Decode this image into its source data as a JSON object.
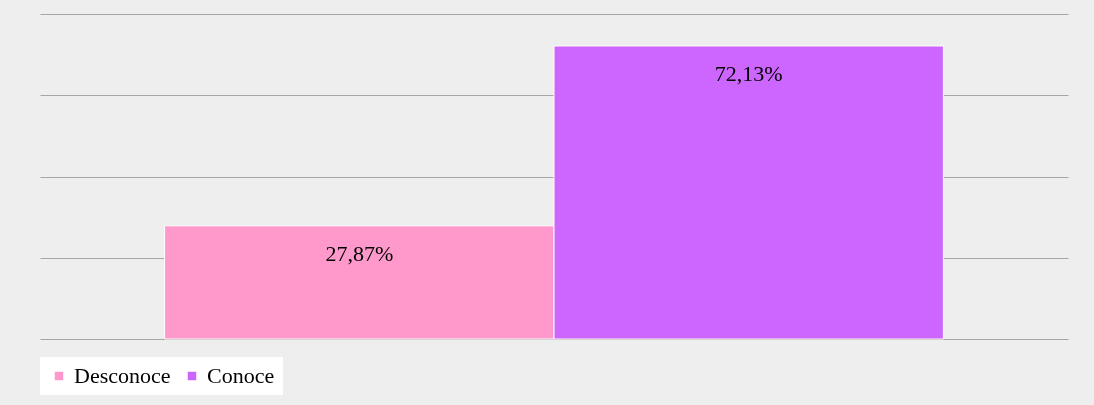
{
  "chart_data": {
    "type": "bar",
    "categories": [
      null
    ],
    "series": [
      {
        "name": "Desconoce",
        "color": "#ff99cc",
        "values": [
          27.87
        ],
        "value_labels": [
          "27,87%"
        ]
      },
      {
        "name": "Conoce",
        "color": "#cc66ff",
        "values": [
          72.13
        ],
        "value_labels": [
          "72,13%"
        ]
      }
    ],
    "ylim": [
      0,
      80
    ],
    "yticks": [
      {
        "value": 0,
        "label": null
      },
      {
        "value": 20,
        "label": null
      },
      {
        "value": 40,
        "label": null
      },
      {
        "value": 60,
        "label": null
      },
      {
        "value": 80,
        "label": null
      }
    ],
    "tick_labels": false,
    "grid": "y",
    "legend": "bottom"
  }
}
